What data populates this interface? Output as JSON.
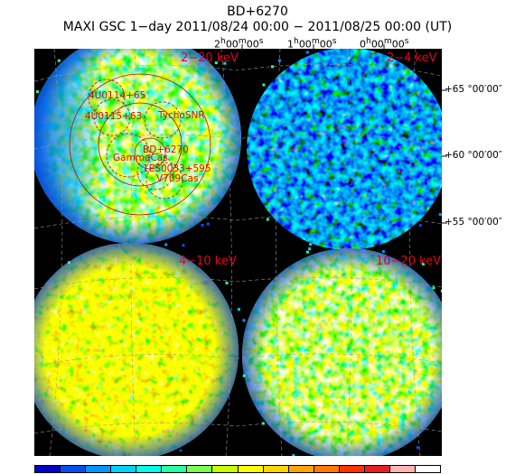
{
  "header": {
    "source_name": "BD+6270",
    "subtitle": "MAXI GSC 1−day 2011/08/24 00:00 − 2011/08/25 00:00 (UT)"
  },
  "axes": {
    "ra_ticks": [
      {
        "h": "2",
        "m": "00",
        "s": "00"
      },
      {
        "h": "1",
        "m": "00",
        "s": "00"
      },
      {
        "h": "0",
        "m": "00",
        "s": "00"
      }
    ],
    "dec_ticks": [
      {
        "label": "+65 °00′00″"
      },
      {
        "label": "+60 °00′00″"
      },
      {
        "label": "+55 °00′00″"
      }
    ]
  },
  "panels": [
    {
      "band": "2−20 keV"
    },
    {
      "band": "2−4 keV"
    },
    {
      "band": "4−10 keV"
    },
    {
      "band": "10−20 keV"
    }
  ],
  "sources": [
    {
      "name": "4U0114+65"
    },
    {
      "name": "4U0115+63"
    },
    {
      "name": "TychoSNR"
    },
    {
      "name": "BD+6270"
    },
    {
      "name": "GammaCas"
    },
    {
      "name": "1ES0033+595"
    },
    {
      "name": "V709Cas"
    }
  ],
  "colorbar": {
    "colors": [
      "#0000c8",
      "#0050f0",
      "#0096ff",
      "#00d2ff",
      "#00ffe6",
      "#28ffa0",
      "#78ff50",
      "#c8ff00",
      "#ffff00",
      "#ffd700",
      "#ffa500",
      "#ff7800",
      "#ff3200",
      "#e61e28",
      "#ffb4b4",
      "#ffffff"
    ]
  },
  "chart_data": {
    "type": "heatmap",
    "title": "BD+6270",
    "subtitle": "MAXI GSC 1−day 2011/08/24 00:00 − 2011/08/25 00:00 (UT)",
    "panels": [
      "2−20 keV",
      "2−4 keV",
      "4−10 keV",
      "10−20 keV"
    ],
    "ra_ticks": [
      "2h00m00s",
      "1h00m00s",
      "0h00m00s"
    ],
    "dec_ticks": [
      "+65°00′00″",
      "+60°00′00″",
      "+55°00′00″"
    ],
    "sources": [
      "4U0114+65",
      "4U0115+63",
      "TychoSNR",
      "BD+6270",
      "GammaCas",
      "1ES0033+595",
      "V709Cas"
    ],
    "grid": true,
    "background": "black"
  }
}
